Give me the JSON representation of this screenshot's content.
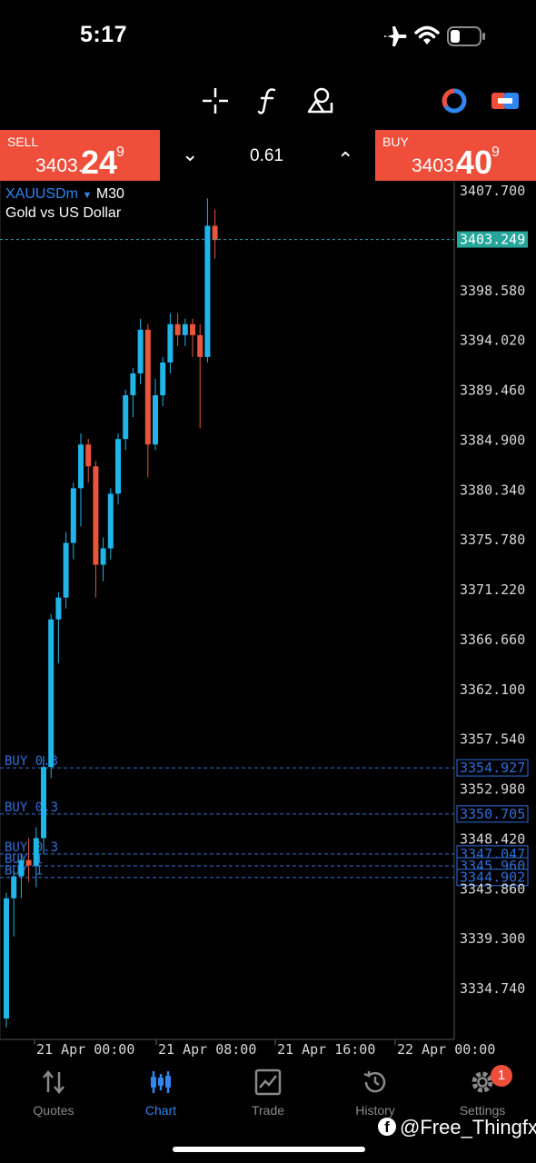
{
  "status_bar": {
    "time": "5:17"
  },
  "toolbar": {
    "timeframe": "M30",
    "icons": [
      "crosshair-icon",
      "function-icon",
      "shapes-icon",
      "chart-color-icon",
      "one-click-trading-icon"
    ]
  },
  "quote": {
    "sell_label": "SELL",
    "sell_price_main": "3403.",
    "sell_price_big": "24",
    "sell_price_sup": "9",
    "buy_label": "BUY",
    "buy_price_main": "3403.",
    "buy_price_big": "40",
    "buy_price_sup": "9",
    "lot": "0.61"
  },
  "chart": {
    "symbol": "XAUUSDm",
    "symbol_timeframe": "M30",
    "description": "Gold vs US Dollar",
    "current_price_label": "3403.249",
    "y_ticks": [
      "3407.700",
      "3398.580",
      "3394.020",
      "3389.460",
      "3384.900",
      "3380.340",
      "3375.780",
      "3371.220",
      "3366.660",
      "3362.100",
      "3357.540",
      "3352.980",
      "3348.420",
      "3343.860",
      "3339.300",
      "3334.740"
    ],
    "x_ticks": [
      "21 Apr 00:00",
      "21 Apr 08:00",
      "21 Apr 16:00",
      "22 Apr 00:00"
    ],
    "order_labels": [
      {
        "text": "BUY 0.3",
        "price": 3354.927,
        "price_label": "3354.927"
      },
      {
        "text": "BUY 0.3",
        "price": 3350.705,
        "price_label": "3350.705"
      },
      {
        "text": "BUY 0.3",
        "price": 3347.047,
        "price_label": "3347.047"
      },
      {
        "text": "BUY 1",
        "price": 3345.96,
        "price_label": "3345.960"
      },
      {
        "text": "BUY 1",
        "price": 3344.902,
        "price_label": "3344.902"
      }
    ],
    "colors": {
      "bull": "#20b5e8",
      "bear": "#e8553d",
      "order_line": "#2f6fd8",
      "ask_line": "#2aa8c8",
      "price_tag": "#26a69a"
    }
  },
  "chart_data": {
    "type": "candlestick",
    "symbol": "XAUUSDm",
    "timeframe": "M30",
    "ylim": [
      3331.2,
      3409.2
    ],
    "candles": [
      {
        "o": 3332.0,
        "h": 3343.5,
        "l": 3331.2,
        "c": 3343.0
      },
      {
        "o": 3343.0,
        "h": 3345.5,
        "l": 3339.5,
        "c": 3345.0
      },
      {
        "o": 3345.0,
        "h": 3347.0,
        "l": 3343.0,
        "c": 3346.5
      },
      {
        "o": 3346.5,
        "h": 3348.5,
        "l": 3344.5,
        "c": 3346.0
      },
      {
        "o": 3346.0,
        "h": 3349.5,
        "l": 3344.0,
        "c": 3348.5
      },
      {
        "o": 3348.5,
        "h": 3356.0,
        "l": 3347.0,
        "c": 3355.0
      },
      {
        "o": 3355.0,
        "h": 3369.0,
        "l": 3354.0,
        "c": 3368.5
      },
      {
        "o": 3368.5,
        "h": 3371.0,
        "l": 3364.5,
        "c": 3370.5
      },
      {
        "o": 3370.5,
        "h": 3376.5,
        "l": 3369.5,
        "c": 3375.5
      },
      {
        "o": 3375.5,
        "h": 3381.0,
        "l": 3374.0,
        "c": 3380.5
      },
      {
        "o": 3380.5,
        "h": 3385.5,
        "l": 3377.0,
        "c": 3384.5
      },
      {
        "o": 3384.5,
        "h": 3385.0,
        "l": 3381.0,
        "c": 3382.5
      },
      {
        "o": 3382.5,
        "h": 3383.0,
        "l": 3370.5,
        "c": 3373.5
      },
      {
        "o": 3373.5,
        "h": 3376.0,
        "l": 3372.0,
        "c": 3375.0
      },
      {
        "o": 3375.0,
        "h": 3380.5,
        "l": 3374.0,
        "c": 3380.0
      },
      {
        "o": 3380.0,
        "h": 3385.5,
        "l": 3379.0,
        "c": 3385.0
      },
      {
        "o": 3385.0,
        "h": 3389.5,
        "l": 3384.0,
        "c": 3389.0
      },
      {
        "o": 3389.0,
        "h": 3391.5,
        "l": 3387.0,
        "c": 3391.0
      },
      {
        "o": 3391.0,
        "h": 3396.0,
        "l": 3390.0,
        "c": 3395.0
      },
      {
        "o": 3395.0,
        "h": 3395.5,
        "l": 3381.5,
        "c": 3384.5
      },
      {
        "o": 3384.5,
        "h": 3390.5,
        "l": 3384.0,
        "c": 3389.0
      },
      {
        "o": 3389.0,
        "h": 3392.5,
        "l": 3388.0,
        "c": 3392.0
      },
      {
        "o": 3392.0,
        "h": 3396.5,
        "l": 3391.0,
        "c": 3395.5
      },
      {
        "o": 3395.5,
        "h": 3396.5,
        "l": 3393.5,
        "c": 3394.5
      },
      {
        "o": 3394.5,
        "h": 3396.0,
        "l": 3393.5,
        "c": 3395.5
      },
      {
        "o": 3395.5,
        "h": 3396.0,
        "l": 3392.5,
        "c": 3394.5
      },
      {
        "o": 3394.5,
        "h": 3395.5,
        "l": 3386.0,
        "c": 3392.5
      },
      {
        "o": 3392.5,
        "h": 3407.0,
        "l": 3392.0,
        "c": 3404.5
      },
      {
        "o": 3404.5,
        "h": 3406.0,
        "l": 3401.5,
        "c": 3403.2
      }
    ]
  },
  "nav": {
    "items": [
      {
        "label": "Quotes",
        "icon": "quotes-icon",
        "active": false
      },
      {
        "label": "Chart",
        "icon": "chart-icon",
        "active": true
      },
      {
        "label": "Trade",
        "icon": "trade-icon",
        "active": false
      },
      {
        "label": "History",
        "icon": "history-icon",
        "active": false
      },
      {
        "label": "Settings",
        "icon": "settings-icon",
        "active": false
      }
    ],
    "settings_badge": "1",
    "active_color": "#2f86f0"
  },
  "watermark": {
    "text": "@Free_Thingfx"
  }
}
